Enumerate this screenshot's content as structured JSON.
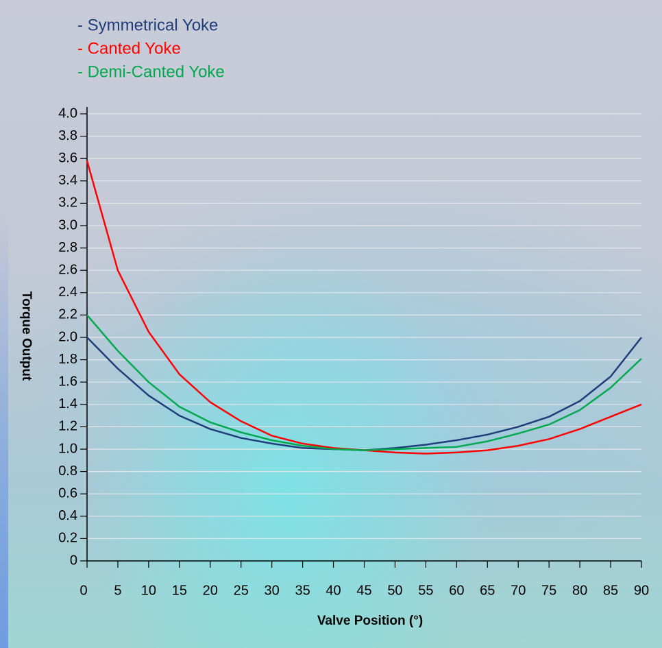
{
  "chart_data": {
    "type": "line",
    "x_label": "Valve Position (°)",
    "y_label": "Torque Output",
    "x": [
      0,
      5,
      10,
      15,
      20,
      25,
      30,
      35,
      40,
      45,
      50,
      55,
      60,
      65,
      70,
      75,
      80,
      85,
      90
    ],
    "series": [
      {
        "name": "- Symmetrical Yoke",
        "color": "#1f3d7a",
        "values": [
          2.0,
          1.72,
          1.48,
          1.3,
          1.18,
          1.1,
          1.05,
          1.01,
          1.0,
          0.99,
          1.01,
          1.04,
          1.08,
          1.13,
          1.2,
          1.29,
          1.43,
          1.65,
          2.0
        ]
      },
      {
        "name": "- Canted Yoke",
        "color": "#ff0000",
        "values": [
          3.58,
          2.6,
          2.05,
          1.67,
          1.42,
          1.25,
          1.12,
          1.05,
          1.01,
          0.99,
          0.97,
          0.96,
          0.97,
          0.99,
          1.03,
          1.09,
          1.18,
          1.29,
          1.4
        ]
      },
      {
        "name": "- Demi-Canted Yoke",
        "color": "#00a84f",
        "values": [
          2.2,
          1.88,
          1.6,
          1.38,
          1.24,
          1.15,
          1.08,
          1.03,
          1.0,
          0.99,
          1.0,
          1.01,
          1.02,
          1.07,
          1.14,
          1.22,
          1.35,
          1.55,
          1.81
        ]
      }
    ],
    "xlim": [
      0,
      90
    ],
    "xticks": [
      0,
      5,
      10,
      15,
      20,
      25,
      30,
      35,
      40,
      45,
      50,
      55,
      60,
      65,
      70,
      75,
      80,
      85,
      90
    ],
    "ylim": [
      0,
      4
    ],
    "yticks": [
      0,
      0.2,
      0.4,
      0.6,
      0.8,
      {
        "value": 1,
        "label": "1.0"
      },
      1.2,
      1.4,
      1.6,
      1.8,
      {
        "value": 2,
        "label": "2.0"
      },
      2.2,
      2.4,
      2.6,
      2.8,
      {
        "value": 3,
        "label": "3.0"
      },
      3.2,
      3.4,
      3.6,
      3.8,
      {
        "value": 4,
        "label": "4.0"
      }
    ],
    "grid": true,
    "legend": "top-left"
  }
}
